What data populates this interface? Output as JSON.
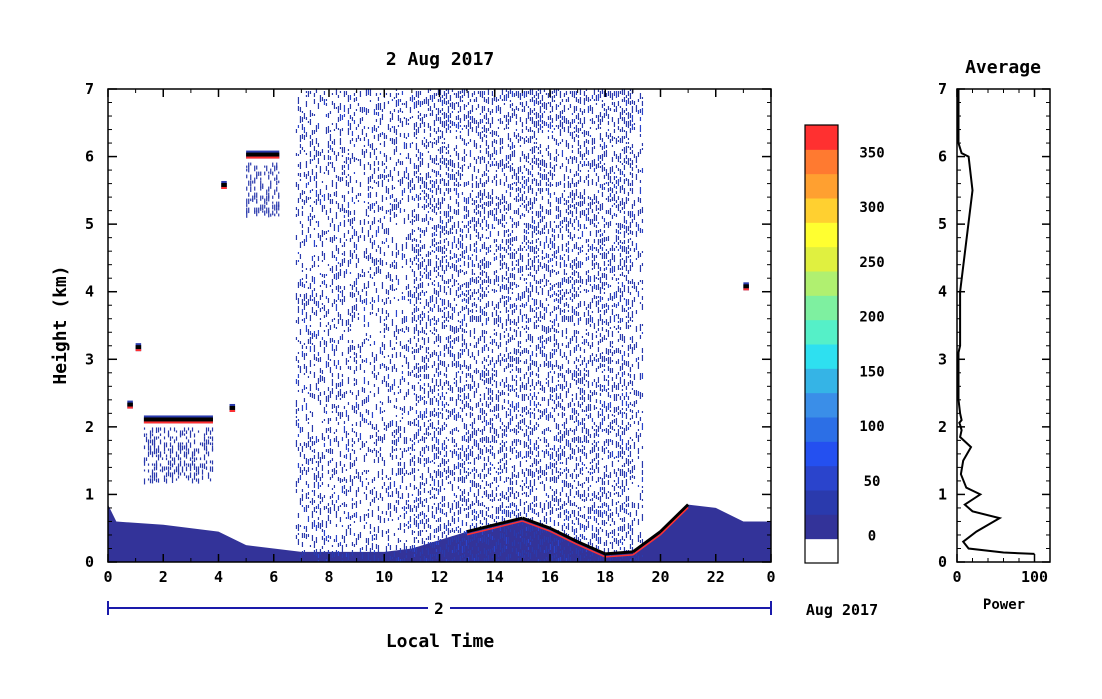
{
  "chart_data": [
    {
      "type": "heatmap",
      "title": "2 Aug 2017",
      "xlabel": "Local Time",
      "ylabel": "Height (km)",
      "x_ticks": [
        "0",
        "2",
        "4",
        "6",
        "8",
        "10",
        "12",
        "14",
        "16",
        "18",
        "20",
        "22",
        "0"
      ],
      "xlim": [
        0,
        24
      ],
      "ylim": [
        0,
        7
      ],
      "y_ticks": [
        "0",
        "1",
        "2",
        "3",
        "4",
        "5",
        "6",
        "7"
      ],
      "date_axis": {
        "day_label": "2",
        "month_label": "Aug 2017"
      },
      "colorbar": {
        "ticks": [
          "0",
          "50",
          "100",
          "150",
          "200",
          "250",
          "300",
          "350"
        ],
        "range": [
          -25,
          375
        ],
        "levels": [
          "#ffffff",
          "#333399",
          "#2a3aad",
          "#2a44cc",
          "#2450f0",
          "#2c6fe6",
          "#3a8ee8",
          "#35b4e6",
          "#2ee0f0",
          "#55f0c8",
          "#7ef0a0",
          "#b0f070",
          "#e0f040",
          "#ffff30",
          "#ffd030",
          "#ffa030",
          "#ff7a30",
          "#ff3030"
        ]
      },
      "layers": {
        "surface_layer": [
          [
            0,
            0.85
          ],
          [
            0.3,
            0.6
          ],
          [
            2,
            0.55
          ],
          [
            4,
            0.45
          ],
          [
            5,
            0.25
          ],
          [
            7,
            0.15
          ],
          [
            10,
            0.15
          ],
          [
            11,
            0.2
          ],
          [
            13,
            0.45
          ],
          [
            15,
            0.65
          ],
          [
            16,
            0.5
          ],
          [
            17,
            0.3
          ],
          [
            18,
            0.12
          ],
          [
            19,
            0.15
          ],
          [
            20,
            0.45
          ],
          [
            21,
            0.85
          ],
          [
            22,
            0.8
          ],
          [
            23,
            0.6
          ],
          [
            24,
            0.6
          ]
        ],
        "cloud_features": [
          {
            "x0": 1.3,
            "x1": 3.8,
            "y": 2.08,
            "label": "cloud layer near 2 km"
          },
          {
            "x0": 0.7,
            "x1": 0.9,
            "y": 2.3
          },
          {
            "x0": 4.4,
            "x1": 4.6,
            "y": 2.25
          },
          {
            "x0": 1.0,
            "x1": 1.2,
            "y": 3.15
          },
          {
            "x0": 4.1,
            "x1": 4.3,
            "y": 5.55
          },
          {
            "x0": 5.0,
            "x1": 6.2,
            "y": 6.0
          },
          {
            "x0": 23.0,
            "x1": 23.2,
            "y": 4.05
          }
        ],
        "noise_region": [
          6.8,
          19.4
        ]
      }
    },
    {
      "type": "line",
      "title": "Average",
      "xlabel": "Power",
      "ylabel": "",
      "xlim": [
        0,
        120
      ],
      "ylim": [
        0,
        7
      ],
      "x_ticks": [
        "0",
        "100"
      ],
      "y_ticks": [
        "0",
        "1",
        "2",
        "3",
        "4",
        "5",
        "6",
        "7"
      ],
      "series": [
        {
          "x": [
            100,
            60,
            15,
            8,
            25,
            55,
            20,
            10,
            30,
            12,
            5,
            8,
            18,
            4,
            6,
            4,
            3,
            6,
            4,
            2,
            2,
            4,
            4,
            20,
            15,
            6,
            2,
            2,
            2,
            2,
            2,
            2,
            2
          ],
          "y": [
            0.12,
            0.14,
            0.2,
            0.3,
            0.45,
            0.65,
            0.75,
            0.85,
            1.0,
            1.1,
            1.3,
            1.5,
            1.7,
            1.85,
            1.95,
            2.03,
            2.06,
            2.1,
            2.2,
            2.4,
            3.1,
            3.2,
            4.0,
            5.5,
            6.0,
            6.05,
            6.2,
            6.5,
            6.8,
            7.0,
            7.0,
            7.0,
            7.0
          ]
        }
      ]
    }
  ]
}
